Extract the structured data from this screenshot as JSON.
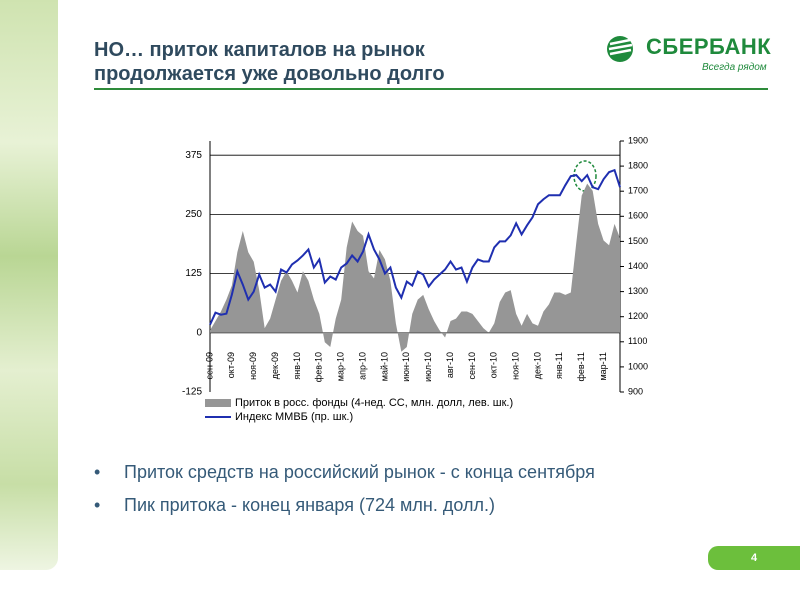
{
  "slide": {
    "title": [
      "НО… приток капиталов на рынок",
      "продолжается уже довольно долго"
    ],
    "logo": {
      "name": "СБЕРБАНК",
      "slogan": "Всегда рядом"
    },
    "bullets": [
      "Приток средств на российский рынок - с конца сентября",
      "Пик притока - конец января (724 млн. долл.)"
    ],
    "page_number": 4
  },
  "chart_data": {
    "type": "combo",
    "categories": [
      "сен-09",
      null,
      null,
      null,
      "окт-09",
      null,
      null,
      null,
      "ноя-09",
      null,
      null,
      null,
      "дек-09",
      null,
      null,
      null,
      "янв-10",
      null,
      null,
      null,
      "фев-10",
      null,
      null,
      null,
      "мар-10",
      null,
      null,
      null,
      "апр-10",
      null,
      null,
      null,
      "май-10",
      null,
      null,
      null,
      "июн-10",
      null,
      null,
      null,
      "июл-10",
      null,
      null,
      null,
      "авг-10",
      null,
      null,
      null,
      "сен-10",
      null,
      null,
      null,
      "окт-10",
      null,
      null,
      null,
      "ноя-10",
      null,
      null,
      null,
      "дек-10",
      null,
      null,
      null,
      "янв-11",
      null,
      null,
      null,
      "фев-11",
      null,
      null,
      null,
      "мар-11",
      null,
      null,
      null
    ],
    "series": [
      {
        "name": "Приток в росс. фонды (4-нед. СС, млн. долл, лев. шк.)",
        "type": "area",
        "color": "#969696",
        "values": [
          5,
          25,
          45,
          70,
          100,
          170,
          215,
          170,
          150,
          90,
          10,
          30,
          70,
          110,
          130,
          110,
          85,
          130,
          110,
          70,
          40,
          -20,
          -30,
          30,
          70,
          180,
          235,
          215,
          205,
          130,
          115,
          175,
          155,
          110,
          20,
          -40,
          -30,
          40,
          70,
          80,
          50,
          25,
          5,
          -10,
          25,
          30,
          45,
          45,
          40,
          25,
          10,
          0,
          20,
          65,
          85,
          90,
          40,
          15,
          40,
          20,
          15,
          45,
          60,
          85,
          85,
          80,
          85,
          190,
          290,
          315,
          300,
          230,
          195,
          185,
          230,
          200
        ]
      },
      {
        "name": "Индекс ММВБ (пр. шк.)",
        "type": "line",
        "axis": "y2",
        "color": "#1f2fb0",
        "values": [
          1168,
          1216,
          1208,
          1212,
          1288,
          1380,
          1328,
          1268,
          1300,
          1368,
          1316,
          1328,
          1300,
          1388,
          1376,
          1408,
          1424,
          1444,
          1468,
          1396,
          1428,
          1336,
          1360,
          1348,
          1396,
          1412,
          1444,
          1420,
          1460,
          1528,
          1468,
          1428,
          1372,
          1396,
          1316,
          1276,
          1340,
          1324,
          1380,
          1368,
          1320,
          1348,
          1368,
          1388,
          1420,
          1388,
          1396,
          1340,
          1396,
          1428,
          1420,
          1420,
          1476,
          1500,
          1500,
          1524,
          1572,
          1528,
          1564,
          1596,
          1648,
          1668,
          1684,
          1684,
          1684,
          1724,
          1760,
          1764,
          1740,
          1764,
          1716,
          1708,
          1748,
          1776,
          1784,
          1716
        ]
      }
    ],
    "ylim": [
      -125,
      405
    ],
    "yticks": [
      -125,
      0,
      125,
      250,
      375
    ],
    "y2lim": [
      900,
      1900
    ],
    "y2ticks": [
      900,
      1000,
      1100,
      1200,
      1300,
      1400,
      1500,
      1600,
      1700,
      1800,
      1900
    ],
    "grid": true
  }
}
